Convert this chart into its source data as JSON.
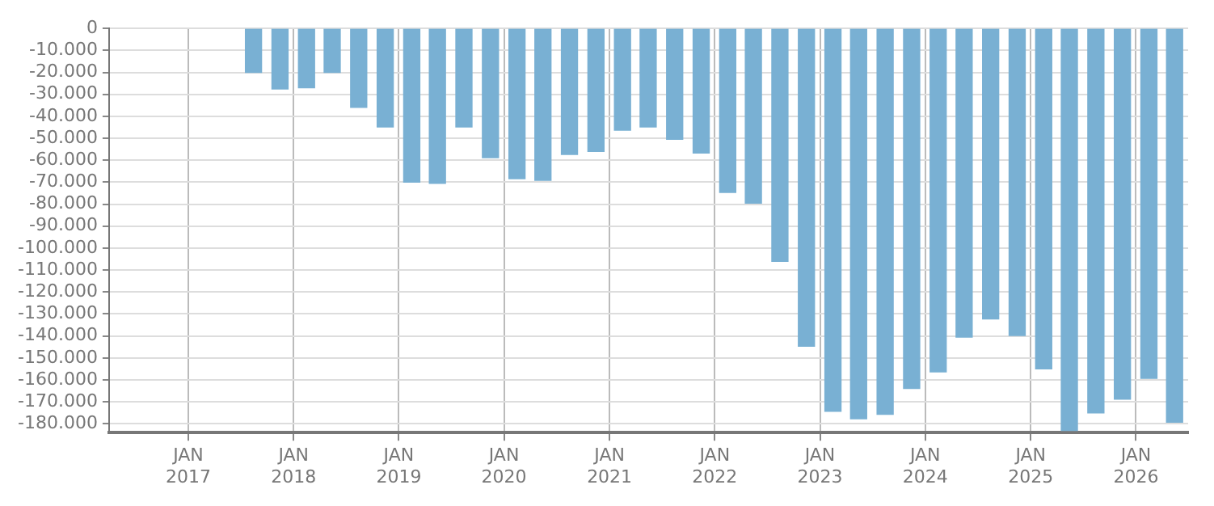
{
  "chart_data": {
    "type": "bar",
    "x": [
      "2017-08-15",
      "2017-11-15",
      "2018-02-15",
      "2018-05-15",
      "2018-08-15",
      "2018-11-15",
      "2019-02-15",
      "2019-05-15",
      "2019-08-15",
      "2019-11-15",
      "2020-02-15",
      "2020-05-15",
      "2020-08-15",
      "2020-11-15",
      "2021-02-15",
      "2021-05-15",
      "2021-08-15",
      "2021-11-15",
      "2022-02-15",
      "2022-05-15",
      "2022-08-15",
      "2022-11-15",
      "2023-02-15",
      "2023-05-15",
      "2023-08-15",
      "2023-11-15",
      "2024-02-15",
      "2024-05-15",
      "2024-08-15",
      "2024-11-15",
      "2025-02-15",
      "2025-05-15",
      "2025-08-15",
      "2025-11-15",
      "2026-02-15",
      "2026-05-15"
    ],
    "values": [
      -20000,
      -27600,
      -27000,
      -20000,
      -35900,
      -44900,
      -70000,
      -70500,
      -44900,
      -58800,
      -68400,
      -69100,
      -57400,
      -56000,
      -46300,
      -44900,
      -50500,
      -56700,
      -74700,
      -79500,
      -106000,
      -144700,
      -174300,
      -177700,
      -175700,
      -163900,
      -156400,
      -140500,
      -132300,
      -139800,
      -155000,
      -183000,
      -175000,
      -168800,
      -159300,
      -179300
    ],
    "color": "#79b0d3",
    "xlim": [
      "2016-04-01",
      "2026-07-01"
    ],
    "xticks": [
      {
        "value": "2017-01-01",
        "label": "JAN 2017"
      },
      {
        "value": "2018-01-01",
        "label": "JAN 2018"
      },
      {
        "value": "2019-01-01",
        "label": "JAN 2019"
      },
      {
        "value": "2020-01-01",
        "label": "JAN 2020"
      },
      {
        "value": "2021-01-01",
        "label": "JAN 2021"
      },
      {
        "value": "2022-01-01",
        "label": "JAN 2022"
      },
      {
        "value": "2023-01-01",
        "label": "JAN 2023"
      },
      {
        "value": "2024-01-01",
        "label": "JAN 2024"
      },
      {
        "value": "2025-01-01",
        "label": "JAN 2025"
      },
      {
        "value": "2026-01-01",
        "label": "JAN 2026"
      }
    ],
    "ylim": [
      -184000,
      0
    ],
    "yticks": [
      {
        "value": 0,
        "label": "0"
      },
      {
        "value": -10000,
        "label": "-10.000"
      },
      {
        "value": -20000,
        "label": "-20.000"
      },
      {
        "value": -30000,
        "label": "-30.000"
      },
      {
        "value": -40000,
        "label": "-40.000"
      },
      {
        "value": -50000,
        "label": "-50.000"
      },
      {
        "value": -60000,
        "label": "-60.000"
      },
      {
        "value": -70000,
        "label": "-70.000"
      },
      {
        "value": -80000,
        "label": "-80.000"
      },
      {
        "value": -90000,
        "label": "-90.000"
      },
      {
        "value": -100000,
        "label": "-100.000"
      },
      {
        "value": -110000,
        "label": "-110.000"
      },
      {
        "value": -120000,
        "label": "-120.000"
      },
      {
        "value": -130000,
        "label": "-130.000"
      },
      {
        "value": -140000,
        "label": "-140.000"
      },
      {
        "value": -150000,
        "label": "-150.000"
      },
      {
        "value": -160000,
        "label": "-160.000"
      },
      {
        "value": -170000,
        "label": "-170.000"
      },
      {
        "value": -180000,
        "label": "-180.000"
      }
    ],
    "grid": true
  }
}
